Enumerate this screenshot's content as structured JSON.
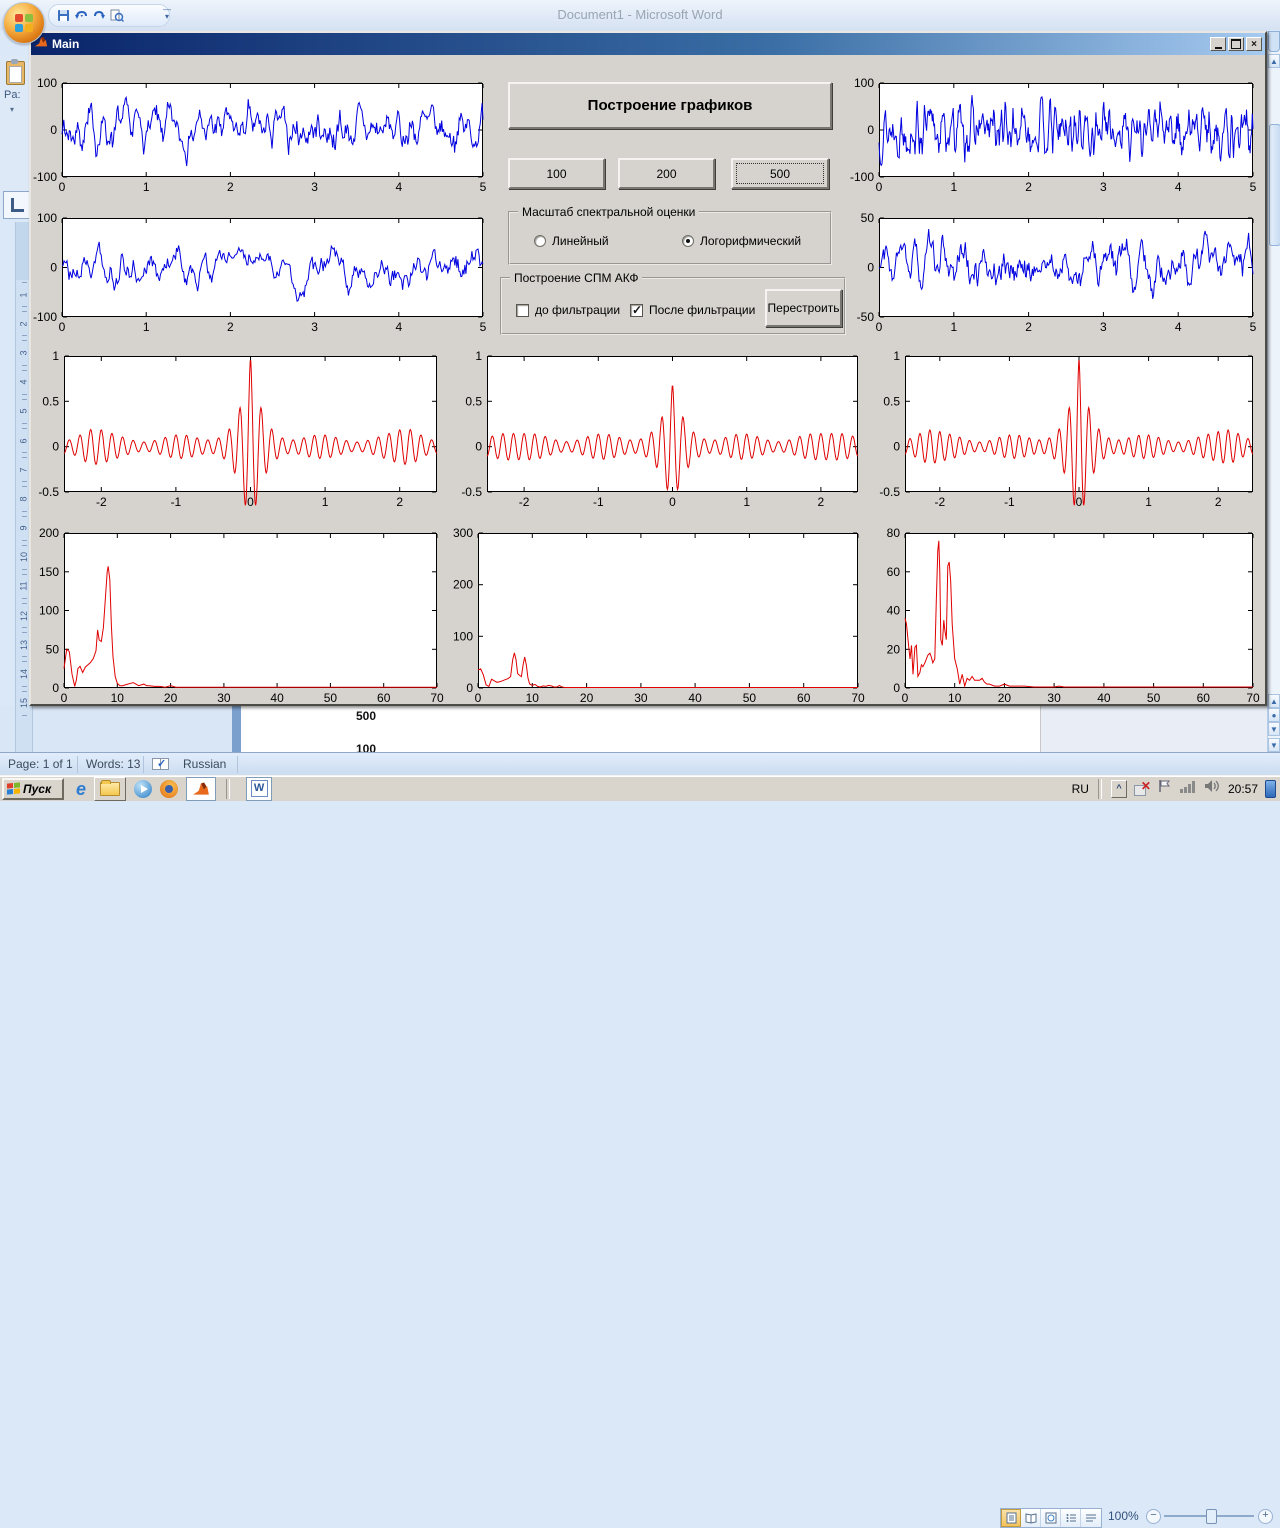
{
  "word": {
    "title": "Document1 - Microsoft Word",
    "ribbon": {
      "paste_label": "Pa:"
    },
    "ruler_numbers": [
      "1",
      "2",
      "3",
      "4",
      "5",
      "6",
      "7",
      "8",
      "9",
      "10",
      "11",
      "12",
      "13",
      "14",
      "15"
    ],
    "document_text": [
      "500",
      "100"
    ],
    "status_bar": {
      "page": "Page: 1 of 1",
      "words": "Words: 13",
      "language": "Russian",
      "zoom_level": "100%"
    }
  },
  "figure": {
    "title": "Main",
    "build_button": "Построение графиков",
    "size_buttons": [
      "100",
      "200",
      "500"
    ],
    "focused_size_button": "500",
    "scale_panel": {
      "title": "Масштаб спектральной оценки",
      "options": [
        {
          "label": "Линейный",
          "selected": false
        },
        {
          "label": "Логорифмический",
          "selected": true
        }
      ]
    },
    "spm_panel": {
      "title": "Построение СПМ АКФ",
      "checkboxes": [
        {
          "label": "до фильтрации",
          "checked": false
        },
        {
          "label": "После фильтрации",
          "checked": true
        }
      ],
      "rebuild_button": "Перестроить"
    }
  },
  "taskbar": {
    "start_label": "Пуск",
    "tray": {
      "language": "RU",
      "time": "20:57"
    }
  },
  "chart_data": [
    {
      "name": "signal-noisy-left",
      "type": "line",
      "color": "#0000e0",
      "xlim": [
        0,
        5
      ],
      "ylim": [
        -100,
        100
      ],
      "xticks": [
        0,
        1,
        2,
        3,
        4,
        5
      ],
      "yticks": [
        -100,
        0,
        100
      ],
      "gen": {
        "kind": "noise",
        "seed": 7,
        "n": 460,
        "smooth": 5,
        "amp": 95
      }
    },
    {
      "name": "signal-noisy-right",
      "type": "line",
      "color": "#0000e0",
      "xlim": [
        0,
        5
      ],
      "ylim": [
        -100,
        100
      ],
      "xticks": [
        0,
        1,
        2,
        3,
        4,
        5
      ],
      "yticks": [
        -100,
        0,
        100
      ],
      "gen": {
        "kind": "noise",
        "seed": 13,
        "n": 520,
        "smooth": 3,
        "amp": 80
      }
    },
    {
      "name": "signal-filtered-left",
      "type": "line",
      "color": "#0000e0",
      "xlim": [
        0,
        5
      ],
      "ylim": [
        -100,
        100
      ],
      "xticks": [
        0,
        1,
        2,
        3,
        4,
        5
      ],
      "yticks": [
        -100,
        0,
        100
      ],
      "gen": {
        "kind": "noise",
        "seed": 21,
        "n": 420,
        "smooth": 8,
        "amp": 115
      }
    },
    {
      "name": "signal-filtered-right",
      "type": "line",
      "color": "#0000e0",
      "xlim": [
        0,
        5
      ],
      "ylim": [
        -50,
        50
      ],
      "xticks": [
        0,
        1,
        2,
        3,
        4,
        5
      ],
      "yticks": [
        -50,
        0,
        50
      ],
      "gen": {
        "kind": "noise",
        "seed": 33,
        "n": 430,
        "smooth": 7,
        "amp": 60
      }
    },
    {
      "name": "acf-left",
      "type": "line",
      "color": "#e00000",
      "xlim": [
        -2.5,
        2.5
      ],
      "ylim": [
        -0.5,
        1
      ],
      "xticks": [
        -2,
        -1,
        0,
        1,
        2
      ],
      "yticks": [
        -0.5,
        0,
        0.5,
        1
      ],
      "gen": {
        "kind": "acf",
        "freq": 7,
        "peak": 0.85,
        "base": 0.13,
        "beat": 0.1,
        "beatPos": 2.15,
        "n": 700
      }
    },
    {
      "name": "acf-mid",
      "type": "line",
      "color": "#e00000",
      "xlim": [
        -2.5,
        2.5
      ],
      "ylim": [
        -0.5,
        1
      ],
      "xticks": [
        -2,
        -1,
        0,
        1,
        2
      ],
      "yticks": [
        -0.5,
        0,
        0.5,
        1
      ],
      "gen": {
        "kind": "acf",
        "freq": 7,
        "peak": 0.55,
        "base": 0.14,
        "beat": 0.08,
        "beatPos": 2.3,
        "n": 700
      }
    },
    {
      "name": "acf-right",
      "type": "line",
      "color": "#e00000",
      "xlim": [
        -2.5,
        2.5
      ],
      "ylim": [
        -0.5,
        1
      ],
      "xticks": [
        -2,
        -1,
        0,
        1,
        2
      ],
      "yticks": [
        -0.5,
        0,
        0.5,
        1
      ],
      "gen": {
        "kind": "acf",
        "freq": 7,
        "peak": 0.85,
        "base": 0.13,
        "beat": 0.1,
        "beatPos": 2.2,
        "n": 700
      }
    },
    {
      "name": "psd-left",
      "type": "line",
      "color": "#e00000",
      "xlim": [
        0,
        70
      ],
      "ylim": [
        0,
        200
      ],
      "xticks": [
        0,
        10,
        20,
        30,
        40,
        50,
        60,
        70
      ],
      "yticks": [
        0,
        50,
        100,
        150,
        200
      ],
      "gen": {
        "kind": "points"
      },
      "points": [
        [
          0,
          25
        ],
        [
          0.5,
          50
        ],
        [
          1,
          47
        ],
        [
          1.5,
          18
        ],
        [
          2,
          2
        ],
        [
          2.3,
          10
        ],
        [
          2.6,
          25
        ],
        [
          3,
          28
        ],
        [
          3.5,
          20
        ],
        [
          4,
          27
        ],
        [
          4.5,
          30
        ],
        [
          5,
          33
        ],
        [
          5.5,
          38
        ],
        [
          6,
          48
        ],
        [
          6.3,
          75
        ],
        [
          6.6,
          62
        ],
        [
          7,
          60
        ],
        [
          7.4,
          78
        ],
        [
          7.8,
          120
        ],
        [
          8.1,
          150
        ],
        [
          8.3,
          157
        ],
        [
          8.6,
          140
        ],
        [
          8.9,
          80
        ],
        [
          9.2,
          40
        ],
        [
          9.6,
          15
        ],
        [
          10,
          6
        ],
        [
          10.5,
          3
        ],
        [
          11,
          3
        ],
        [
          11.5,
          4
        ],
        [
          12,
          5
        ],
        [
          12.5,
          6
        ],
        [
          13,
          7
        ],
        [
          13.5,
          5
        ],
        [
          14,
          3
        ],
        [
          14.5,
          4
        ],
        [
          15,
          5
        ],
        [
          15.5,
          3
        ],
        [
          16,
          3
        ],
        [
          17,
          2
        ],
        [
          18,
          2
        ],
        [
          19,
          1
        ],
        [
          20,
          3
        ],
        [
          21,
          1
        ],
        [
          25,
          1
        ],
        [
          30,
          1
        ],
        [
          35,
          1
        ],
        [
          40,
          1
        ],
        [
          45,
          1
        ],
        [
          50,
          1
        ],
        [
          55,
          1
        ],
        [
          60,
          1
        ],
        [
          65,
          1
        ],
        [
          70,
          1
        ]
      ]
    },
    {
      "name": "psd-mid",
      "type": "line",
      "color": "#e00000",
      "xlim": [
        0,
        70
      ],
      "ylim": [
        0,
        300
      ],
      "xticks": [
        0,
        10,
        20,
        30,
        40,
        50,
        60,
        70
      ],
      "yticks": [
        0,
        100,
        200,
        300
      ],
      "gen": {
        "kind": "points"
      },
      "points": [
        [
          0,
          35
        ],
        [
          0.5,
          37
        ],
        [
          1,
          25
        ],
        [
          1.5,
          6
        ],
        [
          2,
          3
        ],
        [
          2.5,
          17
        ],
        [
          3,
          14
        ],
        [
          3.5,
          11
        ],
        [
          4,
          12
        ],
        [
          4.5,
          14
        ],
        [
          5,
          16
        ],
        [
          5.5,
          18
        ],
        [
          6,
          22
        ],
        [
          6.4,
          55
        ],
        [
          6.7,
          68
        ],
        [
          7,
          55
        ],
        [
          7.3,
          28
        ],
        [
          7.6,
          25
        ],
        [
          8,
          22
        ],
        [
          8.3,
          45
        ],
        [
          8.6,
          60
        ],
        [
          8.9,
          45
        ],
        [
          9.2,
          20
        ],
        [
          9.5,
          8
        ],
        [
          10,
          5
        ],
        [
          10.5,
          7
        ],
        [
          11,
          3
        ],
        [
          11.5,
          2
        ],
        [
          12,
          4
        ],
        [
          12.5,
          3
        ],
        [
          13,
          5
        ],
        [
          13.5,
          4
        ],
        [
          14,
          2
        ],
        [
          14.5,
          2
        ],
        [
          15,
          5
        ],
        [
          15.5,
          2
        ],
        [
          16,
          1
        ],
        [
          18,
          1
        ],
        [
          20,
          1
        ],
        [
          25,
          1
        ],
        [
          30,
          1
        ],
        [
          35,
          1
        ],
        [
          40,
          1
        ],
        [
          45,
          1
        ],
        [
          50,
          1
        ],
        [
          55,
          1
        ],
        [
          60,
          1
        ],
        [
          65,
          1
        ],
        [
          70,
          1
        ]
      ]
    },
    {
      "name": "psd-right",
      "type": "line",
      "color": "#e00000",
      "xlim": [
        0,
        70
      ],
      "ylim": [
        0,
        80
      ],
      "xticks": [
        0,
        10,
        20,
        30,
        40,
        50,
        60,
        70
      ],
      "yticks": [
        0,
        20,
        40,
        60,
        80
      ],
      "gen": {
        "kind": "points"
      },
      "points": [
        [
          0,
          36
        ],
        [
          0.3,
          33
        ],
        [
          0.6,
          25
        ],
        [
          1,
          15
        ],
        [
          1.3,
          22
        ],
        [
          1.6,
          7
        ],
        [
          2,
          21
        ],
        [
          2.3,
          22
        ],
        [
          2.6,
          6
        ],
        [
          3,
          8
        ],
        [
          3.3,
          12
        ],
        [
          3.6,
          11
        ],
        [
          4,
          13
        ],
        [
          4.3,
          15
        ],
        [
          4.6,
          17
        ],
        [
          5,
          18
        ],
        [
          5.3,
          16
        ],
        [
          5.6,
          13
        ],
        [
          6,
          15
        ],
        [
          6.3,
          45
        ],
        [
          6.6,
          71
        ],
        [
          6.8,
          76
        ],
        [
          7,
          60
        ],
        [
          7.2,
          25
        ],
        [
          7.5,
          22
        ],
        [
          7.8,
          35
        ],
        [
          8,
          30
        ],
        [
          8.3,
          25
        ],
        [
          8.6,
          63
        ],
        [
          8.9,
          65
        ],
        [
          9.2,
          55
        ],
        [
          9.5,
          33
        ],
        [
          10,
          15
        ],
        [
          10.5,
          10
        ],
        [
          11,
          2
        ],
        [
          11.5,
          7
        ],
        [
          12,
          1
        ],
        [
          12.5,
          5
        ],
        [
          13,
          4
        ],
        [
          13.5,
          6
        ],
        [
          14,
          4
        ],
        [
          14.5,
          4
        ],
        [
          15,
          4
        ],
        [
          15.5,
          5
        ],
        [
          16,
          3
        ],
        [
          16.5,
          2
        ],
        [
          17,
          2
        ],
        [
          18,
          1
        ],
        [
          19,
          1
        ],
        [
          20,
          2
        ],
        [
          21,
          1
        ],
        [
          22,
          1
        ],
        [
          24,
          1
        ],
        [
          26,
          0.5
        ],
        [
          28,
          0.5
        ],
        [
          30,
          0.5
        ],
        [
          31,
          1
        ],
        [
          32,
          0.5
        ],
        [
          40,
          0.5
        ],
        [
          50,
          0.5
        ],
        [
          60,
          0.5
        ],
        [
          70,
          0.5
        ]
      ]
    }
  ]
}
